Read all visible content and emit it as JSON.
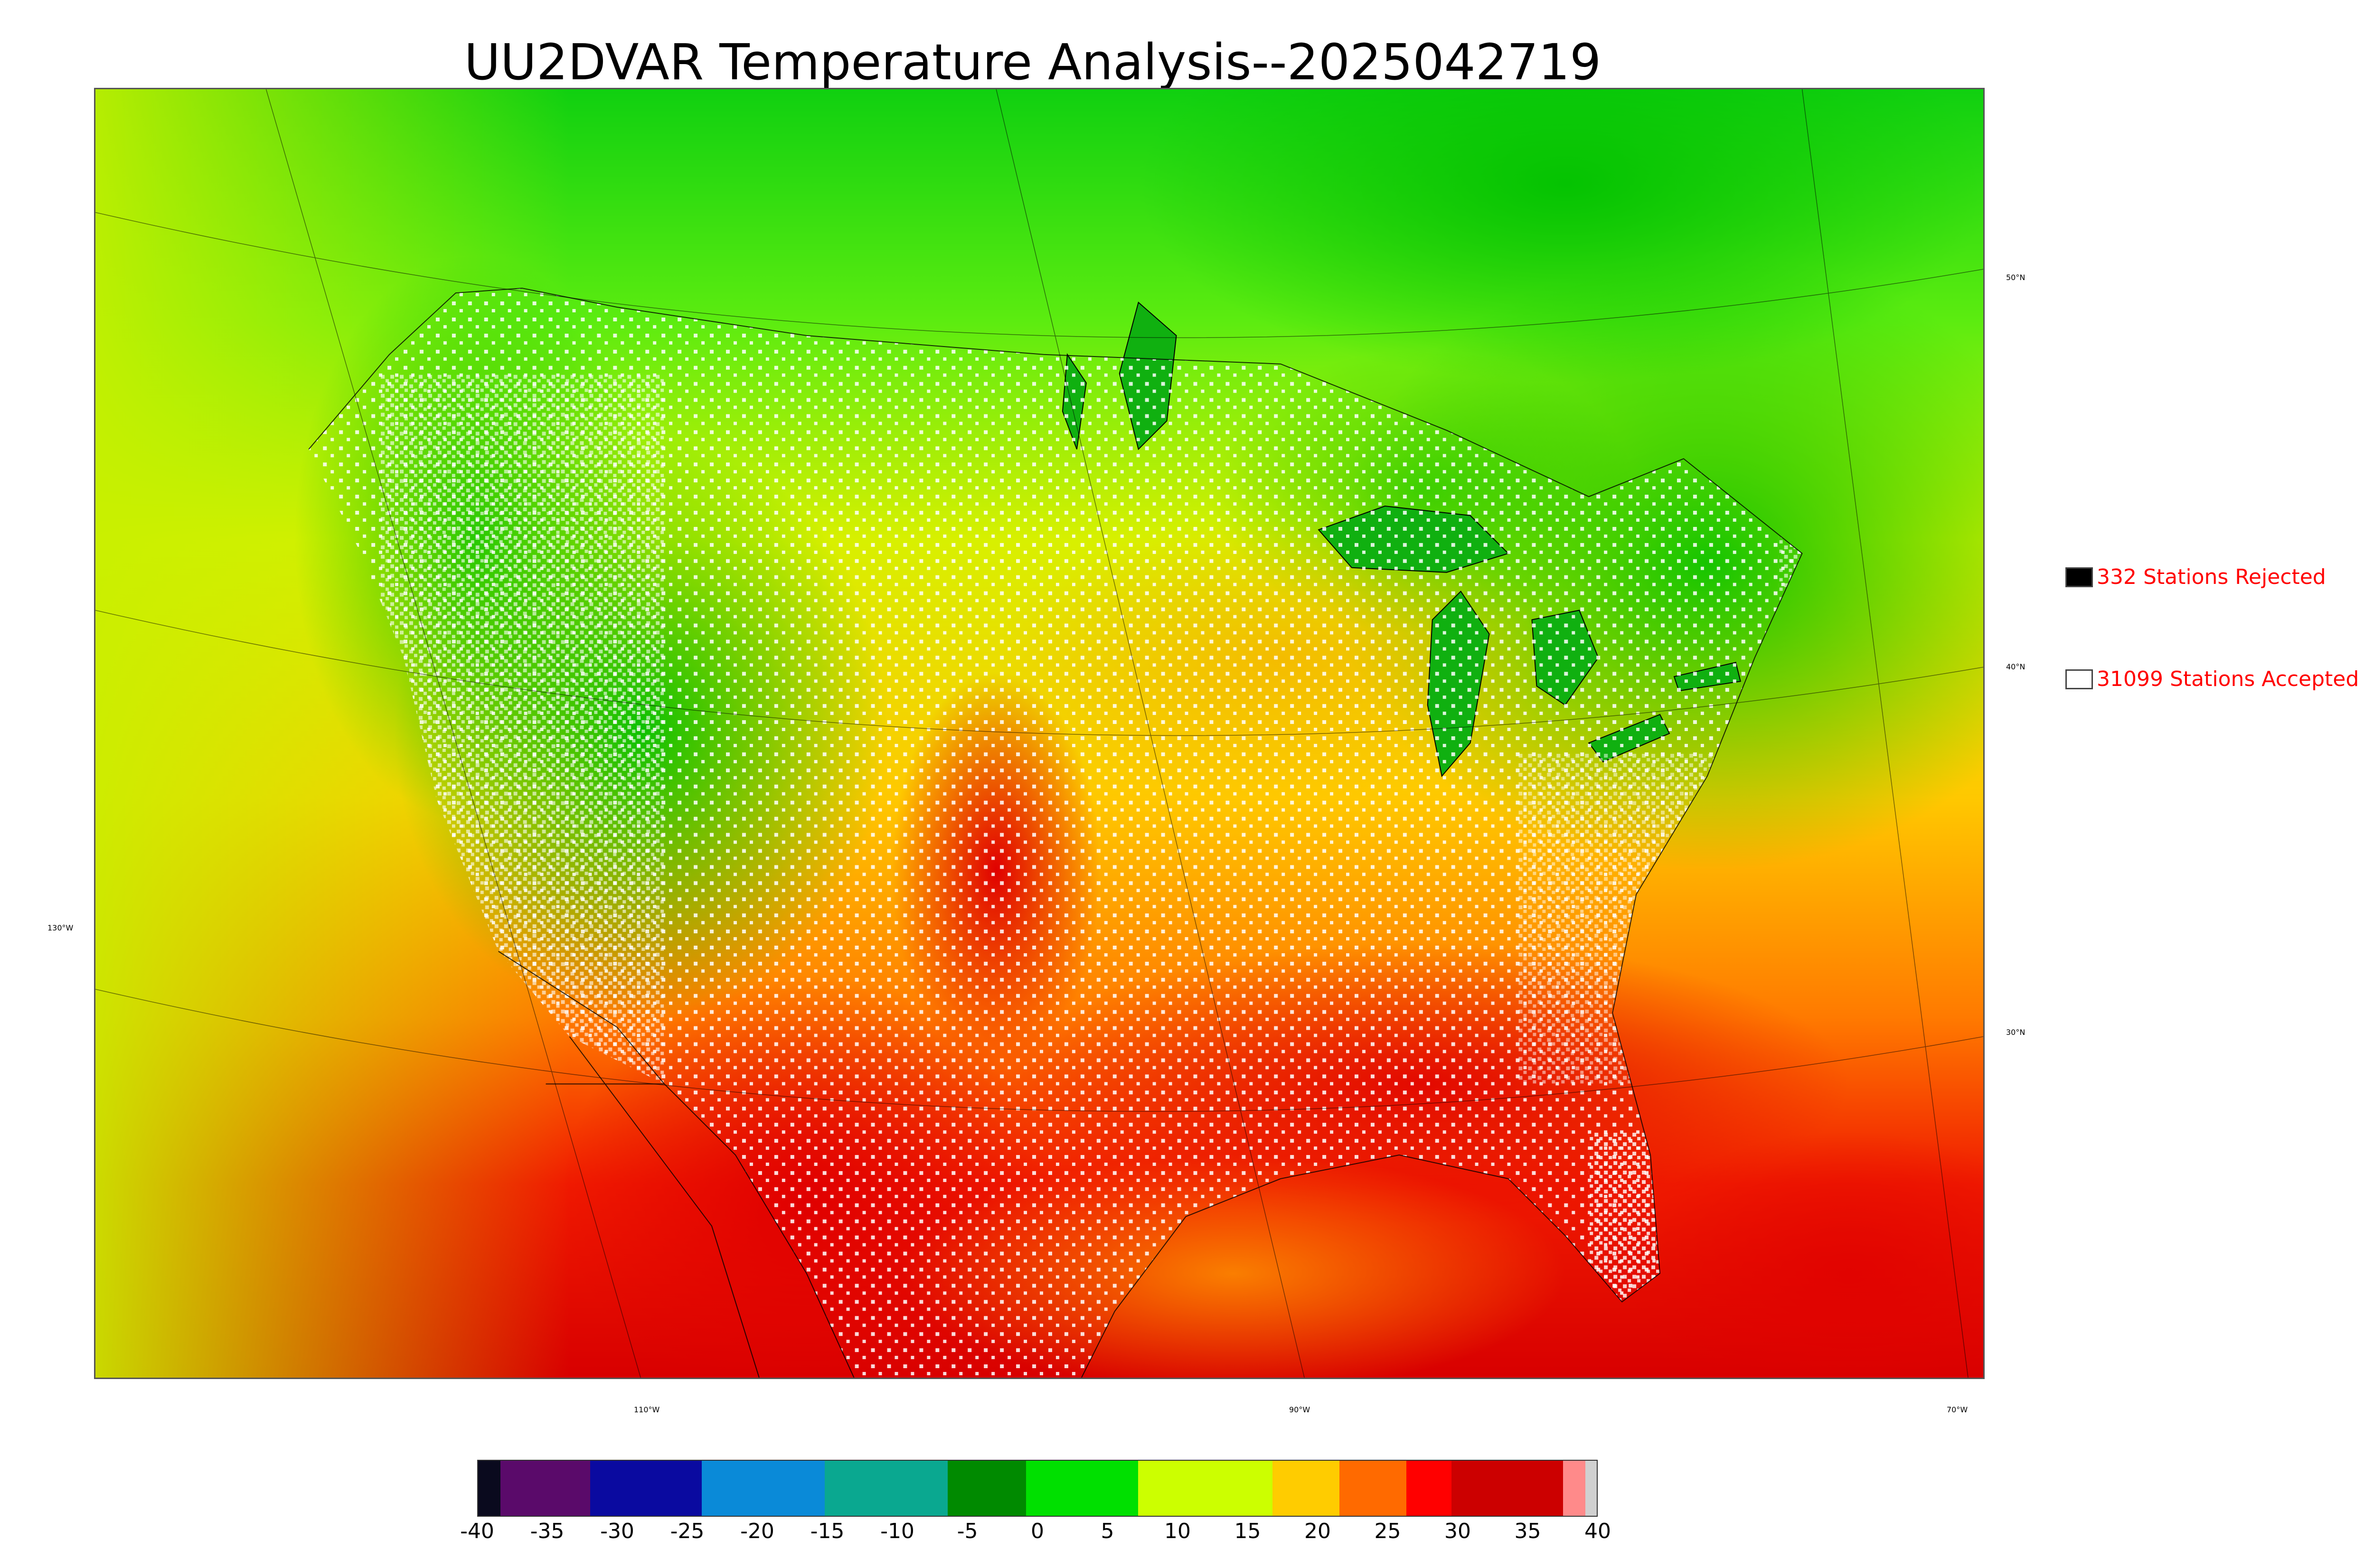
{
  "title": "UU2DVAR Temperature Analysis--2025042719",
  "legend": {
    "rejected": {
      "label": "332 Stations Rejected",
      "color": "#000000"
    },
    "accepted": {
      "label": "31099 Stations Accepted",
      "color": "#ffffff"
    }
  },
  "latitude_labels": [
    "50°N",
    "40°N",
    "30°N"
  ],
  "longitude_labels": [
    "130°W",
    "110°W",
    "90°W",
    "70°W"
  ],
  "colorbar": {
    "ticks": [
      "-40",
      "-35",
      "-30",
      "-25",
      "-20",
      "-15",
      "-10",
      "-5",
      "0",
      "5",
      "10",
      "15",
      "20",
      "25",
      "30",
      "35",
      "40"
    ],
    "range": [
      -40,
      40
    ],
    "colors": [
      "#0a0a1e",
      "#5a0a6a",
      "#0a0aa0",
      "#0a8ad8",
      "#0aa890",
      "#008a00",
      "#00e000",
      "#ccff00",
      "#ffcc00",
      "#ff6a00",
      "#ff0000",
      "#cc0000",
      "#ff8a8a",
      "#d0d0d0"
    ]
  },
  "chart_data": {
    "type": "heatmap",
    "title": "UU2DVAR Temperature Analysis--2025042719",
    "colorbar_range": [
      -40,
      40
    ],
    "colorbar_ticks": [
      -40,
      -35,
      -30,
      -25,
      -20,
      -15,
      -10,
      -5,
      0,
      5,
      10,
      15,
      20,
      25,
      30,
      35,
      40
    ],
    "stations_rejected": 332,
    "stations_accepted": 31099
  }
}
